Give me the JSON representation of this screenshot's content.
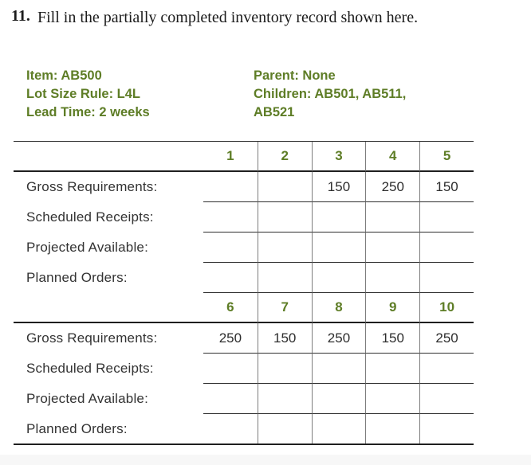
{
  "question": {
    "number": "11.",
    "text": "Fill in the partially completed inventory record shown here."
  },
  "info": {
    "left": [
      "Item: AB500",
      "Lot Size Rule: L4L",
      "Lead Time: 2 weeks"
    ],
    "right": [
      "Parent: None",
      "Children: AB501, AB511,",
      "AB521"
    ]
  },
  "table": {
    "blocks": [
      {
        "periods": [
          "1",
          "2",
          "3",
          "4",
          "5"
        ],
        "rows": [
          {
            "label": "Gross Requirements:",
            "values": [
              "",
              "",
              "150",
              "250",
              "150"
            ]
          },
          {
            "label": "Scheduled Receipts:",
            "values": [
              "",
              "",
              "",
              "",
              ""
            ]
          },
          {
            "label": "Projected Available:",
            "values": [
              "",
              "",
              "",
              "",
              ""
            ]
          },
          {
            "label": "Planned Orders:",
            "values": [
              "",
              "",
              "",
              "",
              ""
            ]
          }
        ]
      },
      {
        "periods": [
          "6",
          "7",
          "8",
          "9",
          "10"
        ],
        "rows": [
          {
            "label": "Gross Requirements:",
            "values": [
              "250",
              "150",
              "250",
              "150",
              "250"
            ]
          },
          {
            "label": "Scheduled Receipts:",
            "values": [
              "",
              "",
              "",
              "",
              ""
            ]
          },
          {
            "label": "Projected Available:",
            "values": [
              "",
              "",
              "",
              "",
              ""
            ]
          },
          {
            "label": "Planned Orders:",
            "values": [
              "",
              "",
              "",
              "",
              ""
            ]
          }
        ]
      }
    ]
  },
  "colors": {
    "accent_green": "#5e7d26",
    "grid_line": "#7d7d7d",
    "rule_dark": "#2e2e2e"
  }
}
